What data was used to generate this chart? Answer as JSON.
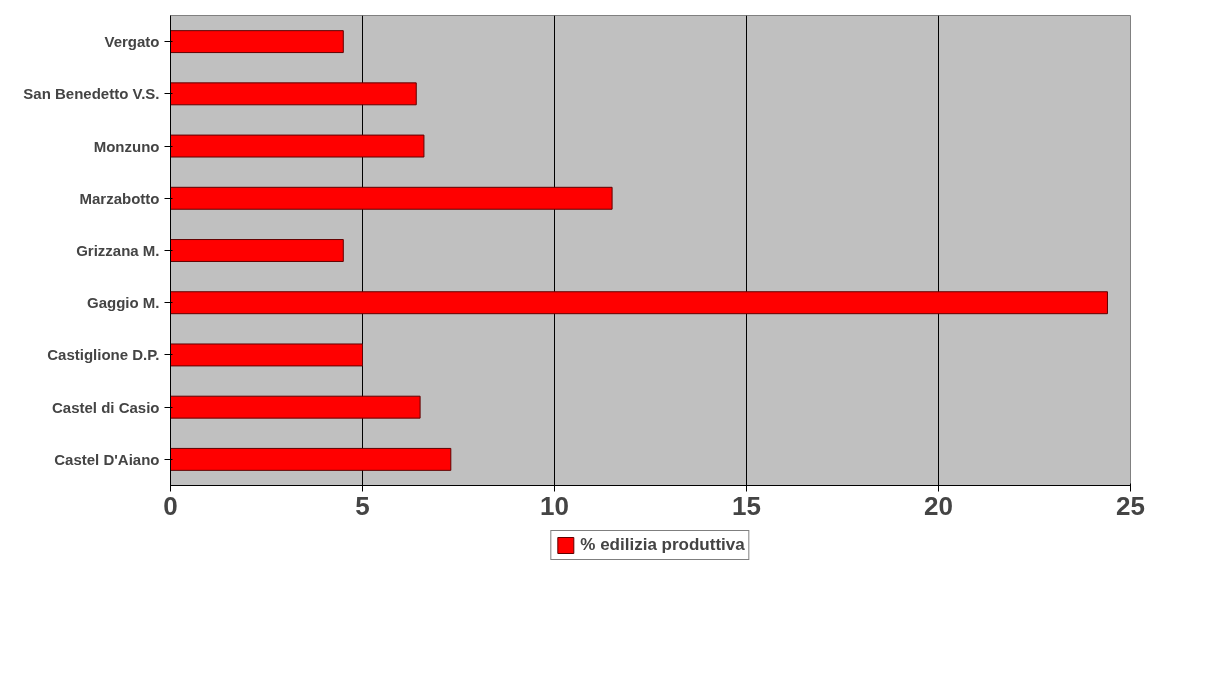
{
  "chart_data": {
    "type": "bar",
    "orientation": "horizontal",
    "categories": [
      "Vergato",
      "San Benedetto V.S.",
      "Monzuno",
      "Marzabotto",
      "Grizzana M.",
      "Gaggio M.",
      "Castiglione D.P.",
      "Castel di Casio",
      "Castel D'Aiano"
    ],
    "series": [
      {
        "name": "% edilizia produttiva",
        "color": "#ff0000",
        "values": [
          4.5,
          6.4,
          6.6,
          11.5,
          4.5,
          24.4,
          5.0,
          6.5,
          7.3
        ]
      }
    ],
    "xlim": [
      0,
      25
    ],
    "xticks": [
      0,
      5,
      10,
      15,
      20,
      25
    ],
    "grid": "x",
    "legend": "bottom"
  }
}
